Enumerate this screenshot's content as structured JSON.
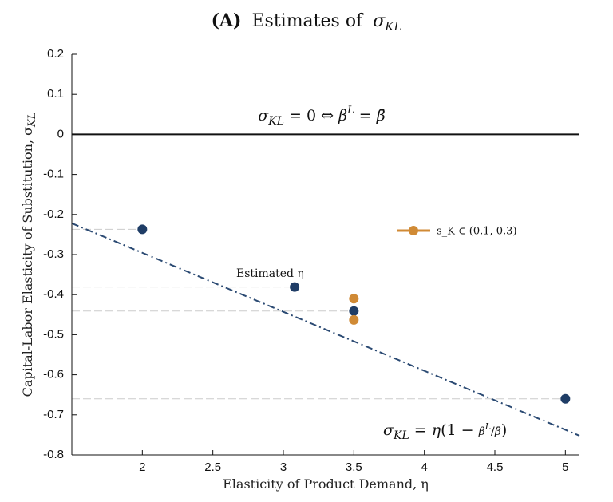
{
  "chart_data": {
    "type": "scatter",
    "title_prefix": "(A)",
    "title_text": "Estimates of",
    "title_symbol": "σ",
    "title_sub": "KL",
    "xlabel": "Elasticity of Product Demand, η",
    "ylabel": "Capital-Labor Elasticity of Substitution, σ",
    "ylabel_sub": "KL",
    "xlim": [
      1.5,
      5.1
    ],
    "ylim": [
      -0.8,
      0.2
    ],
    "x_ticks": [
      2,
      2.5,
      3,
      3.5,
      4,
      4.5,
      5
    ],
    "x_tick_labels": [
      "2",
      "2.5",
      "3",
      "3.5",
      "4",
      "4.5",
      "5"
    ],
    "y_ticks": [
      0.2,
      0.1,
      0,
      -0.1,
      -0.2,
      -0.3,
      -0.4,
      -0.5,
      -0.6,
      -0.7,
      -0.8
    ],
    "y_tick_labels": [
      "0.2",
      "0.1",
      "0",
      "-0.1",
      "-0.2",
      "-0.3",
      "-0.4",
      "-0.5",
      "-0.6",
      "-0.7",
      "-0.8"
    ],
    "zero_line": 0,
    "zero_annotation": "σ_KL = 0 ⇔ β^L = β̄",
    "dashdot_line": {
      "x": [
        1.5,
        5.1
      ],
      "y": [
        -0.222,
        -0.752
      ],
      "color": "#2b4a73"
    },
    "dashdot_annotation": "σ_KL = η(1 − β^L/β̄)",
    "series": [
      {
        "color": "#1f3d66",
        "points": [
          {
            "x": 2.0,
            "y": -0.237
          },
          {
            "x": 3.08,
            "y": -0.381
          },
          {
            "x": 3.5,
            "y": -0.441
          },
          {
            "x": 5.0,
            "y": -0.66
          }
        ]
      },
      {
        "name": "s_K ∈ (0.1, 0.3)",
        "color": "#d08a35",
        "points": [
          {
            "x": 3.5,
            "y": -0.41
          },
          {
            "x": 3.5,
            "y": -0.463
          }
        ]
      }
    ],
    "point_label": "Estimated η",
    "legend_position": "right-middle"
  }
}
